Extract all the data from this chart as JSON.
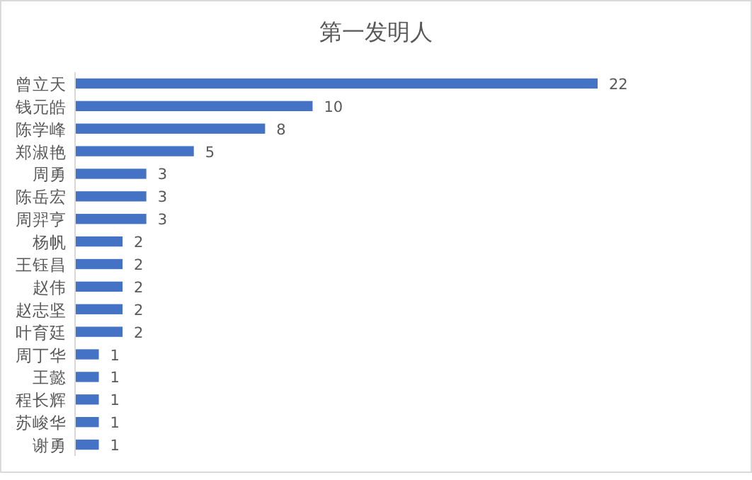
{
  "chart_data": {
    "type": "bar",
    "orientation": "horizontal",
    "title": "第一发明人",
    "categories": [
      "曾立天",
      "钱元皓",
      "陈学峰",
      "郑淑艳",
      "周勇",
      "陈岳宏",
      "周羿亨",
      "杨帆",
      "王钰昌",
      "赵伟",
      "赵志坚",
      "叶育廷",
      "周丁华",
      "王懿",
      "程长辉",
      "苏峻华",
      "谢勇"
    ],
    "values": [
      22,
      10,
      8,
      5,
      3,
      3,
      3,
      2,
      2,
      2,
      2,
      2,
      1,
      1,
      1,
      1,
      1
    ],
    "color": "#4472c4",
    "data_labels": true
  }
}
